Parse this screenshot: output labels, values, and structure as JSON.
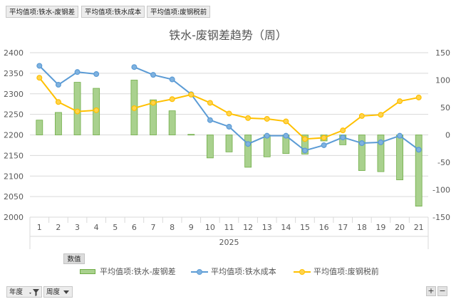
{
  "field_buttons": [
    "平均值项:铁水-废钢差",
    "平均值项:铁水成本",
    "平均值项:废钢税前"
  ],
  "values_button": "数值",
  "filters": [
    {
      "label": "年度",
      "icon": "filter-icon"
    },
    {
      "label": "周度",
      "icon": "dropdown-icon"
    }
  ],
  "zoom": {
    "plus": "+",
    "minus": "−"
  },
  "chart_data": {
    "type": "bar",
    "title": "铁水-废钢差趋势（周）",
    "xlabel": "2025",
    "categories": [
      "1",
      "2",
      "3",
      "4",
      "5",
      "6",
      "7",
      "8",
      "9",
      "10",
      "11",
      "12",
      "13",
      "14",
      "15",
      "16",
      "17",
      "18",
      "19",
      "20",
      "21"
    ],
    "left_axis": {
      "min": 2000,
      "max": 2400,
      "step": 50,
      "ticks": [
        "2000",
        "2050",
        "2100",
        "2150",
        "2200",
        "2250",
        "2300",
        "2350",
        "2400"
      ]
    },
    "right_axis": {
      "min": -150,
      "max": 150,
      "step": 50,
      "ticks": [
        "-150",
        "-100",
        "-50",
        "0",
        "50",
        "100",
        "150"
      ]
    },
    "colors": {
      "bar": "#a9d18e",
      "bar_border": "#70ad47",
      "iron": "#5b9bd5",
      "scrap": "#ffc000"
    },
    "series": [
      {
        "name": "平均值项:铁水-废钢差",
        "axis": "right",
        "type": "bar",
        "values": [
          27,
          41,
          96,
          85,
          null,
          100,
          64,
          44,
          1,
          -42,
          -31,
          -59,
          -40,
          -34,
          -35,
          -11,
          -18,
          -65,
          -67,
          -82,
          -130
        ]
      },
      {
        "name": "平均值项:铁水成本",
        "axis": "left",
        "type": "line",
        "values": [
          2368,
          2322,
          2353,
          2348,
          null,
          2365,
          2346,
          2335,
          2299,
          2236,
          2220,
          2178,
          2198,
          2198,
          2162,
          2175,
          2194,
          2180,
          2182,
          2198,
          2164
        ]
      },
      {
        "name": "平均值项:废钢税前",
        "axis": "left",
        "type": "line",
        "values": [
          2339,
          2280,
          2257,
          2260,
          null,
          2265,
          2278,
          2287,
          2298,
          2278,
          2252,
          2241,
          2239,
          2233,
          2190,
          2193,
          2211,
          2246,
          2249,
          2282,
          2291
        ]
      }
    ],
    "grid": true,
    "legend": "bottom"
  }
}
